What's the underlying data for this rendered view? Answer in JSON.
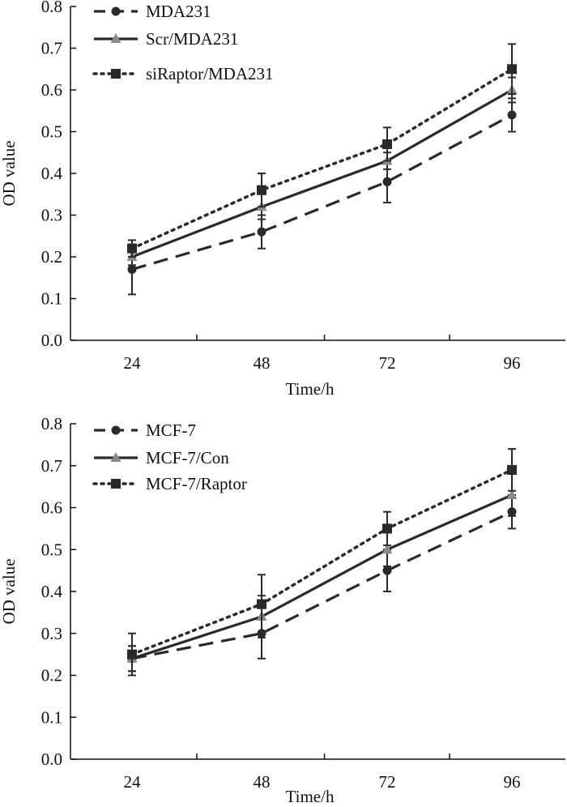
{
  "chart_data": [
    {
      "type": "line",
      "title": "",
      "xlabel": "Time/h",
      "ylabel": "OD value",
      "categories": [
        "24",
        "48",
        "72",
        "96"
      ],
      "ylim": [
        0,
        0.8
      ],
      "yticks": [
        "0.0",
        "0.1",
        "0.2",
        "0.3",
        "0.4",
        "0.5",
        "0.6",
        "0.7",
        "0.8"
      ],
      "legend_position": "top-left",
      "series": [
        {
          "name": "MDA231",
          "values": [
            0.17,
            0.26,
            0.38,
            0.54
          ],
          "errors": [
            0.06,
            0.04,
            0.05,
            0.04
          ],
          "style": "dashed",
          "marker": "circle"
        },
        {
          "name": "Scr/MDA231",
          "values": [
            0.2,
            0.32,
            0.43,
            0.6
          ],
          "errors": [
            0.02,
            0.03,
            0.02,
            0.03
          ],
          "style": "solid",
          "marker": "triangle"
        },
        {
          "name": "siRaptor/MDA231",
          "values": [
            0.22,
            0.36,
            0.47,
            0.65
          ],
          "errors": [
            0.02,
            0.04,
            0.04,
            0.06
          ],
          "style": "dotted",
          "marker": "square"
        }
      ]
    },
    {
      "type": "line",
      "title": "",
      "xlabel": "Time/h",
      "ylabel": "OD value",
      "categories": [
        "24",
        "48",
        "72",
        "96"
      ],
      "ylim": [
        0,
        0.8
      ],
      "yticks": [
        "0.0",
        "0.1",
        "0.2",
        "0.3",
        "0.4",
        "0.5",
        "0.6",
        "0.7",
        "0.8"
      ],
      "legend_position": "top-left",
      "series": [
        {
          "name": "MCF-7",
          "values": [
            0.24,
            0.3,
            0.45,
            0.59
          ],
          "errors": [
            0.03,
            0.06,
            0.05,
            0.04
          ],
          "style": "dashed",
          "marker": "circle"
        },
        {
          "name": "MCF-7/Con",
          "values": [
            0.24,
            0.34,
            0.5,
            0.63
          ],
          "errors": [
            0.03,
            0.05,
            0.04,
            0.05
          ],
          "style": "solid",
          "marker": "triangle"
        },
        {
          "name": "MCF-7/Raptor",
          "values": [
            0.25,
            0.37,
            0.55,
            0.69
          ],
          "errors": [
            0.05,
            0.07,
            0.04,
            0.05
          ],
          "style": "dotted",
          "marker": "square"
        }
      ]
    }
  ],
  "colors": {
    "series": "#2a2a2a",
    "triangle_marker": "#8a8a8a",
    "axis": "#111111"
  }
}
